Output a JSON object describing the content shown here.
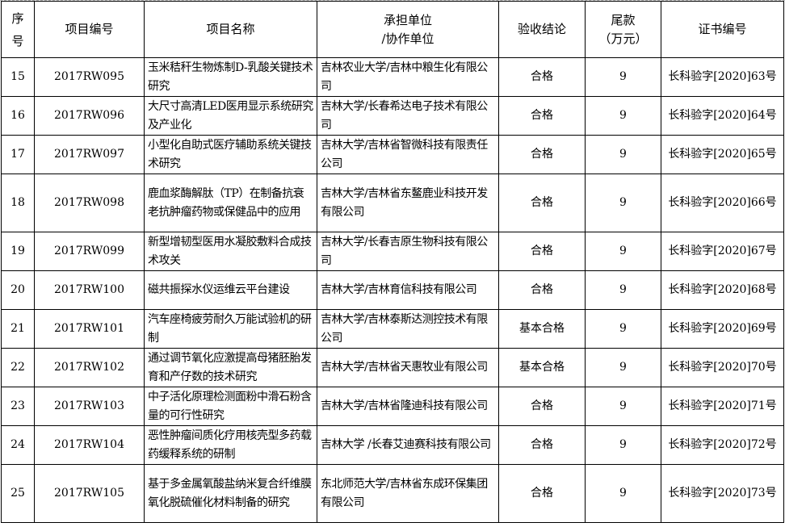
{
  "table": {
    "headers": [
      "序号",
      "项目编号",
      "项目名称",
      "承担单位\n/协作单位",
      "验收结论",
      "尾款\n（万元）",
      "证书编号"
    ],
    "rows": [
      {
        "no": "15",
        "code": "2017RW095",
        "name": "玉米秸秆生物炼制D-乳酸关键技术研究",
        "unit": "吉林农业大学/吉林中粮生化有限公司",
        "result": "合格",
        "amount": "9",
        "cert": "长科验字[2020]63号"
      },
      {
        "no": "16",
        "code": "2017RW096",
        "name": "大尺寸高清LED医用显示系统研究及产业化",
        "unit": "吉林大学/长春希达电子技术有限公司",
        "result": "合格",
        "amount": "9",
        "cert": "长科验字[2020]64号"
      },
      {
        "no": "17",
        "code": "2017RW097",
        "name": "小型化自助式医疗辅助系统关键技术研究",
        "unit": "吉林大学/吉林省智微科技有限责任公司",
        "result": "合格",
        "amount": "9",
        "cert": "长科验字[2020]65号"
      },
      {
        "no": "18",
        "code": "2017RW098",
        "name": "鹿血浆酶解肽（TP）在制备抗衰老抗肿瘤药物或保健品中的应用",
        "unit": "吉林大学/吉林省东鳌鹿业科技开发有限公司",
        "result": "合格",
        "amount": "9",
        "cert": "长科验字[2020]66号"
      },
      {
        "no": "19",
        "code": "2017RW099",
        "name": "新型增韧型医用水凝胶敷料合成技术攻关",
        "unit": "吉林大学/长春吉原生物科技有限公司",
        "result": "合格",
        "amount": "9",
        "cert": "长科验字[2020]67号"
      },
      {
        "no": "20",
        "code": "2017RW100",
        "name": "磁共振探水仪运维云平台建设",
        "unit": "吉林大学/吉林育信科技有限公司",
        "result": "合格",
        "amount": "9",
        "cert": "长科验字[2020]68号"
      },
      {
        "no": "21",
        "code": "2017RW101",
        "name": "汽车座椅疲劳耐久万能试验机的研制",
        "unit": "吉林大学/吉林泰斯达测控技术有限公司",
        "result": "基本合格",
        "amount": "9",
        "cert": "长科验字[2020]69号"
      },
      {
        "no": "22",
        "code": "2017RW102",
        "name": "通过调节氧化应激提高母猪胚胎发育和产仔数的技术研究",
        "unit": "吉林大学/吉林省天惠牧业有限公司",
        "result": "基本合格",
        "amount": "9",
        "cert": "长科验字[2020]70号"
      },
      {
        "no": "23",
        "code": "2017RW103",
        "name": "中子活化原理检测面粉中滑石粉含量的可行性研究",
        "unit": "吉林大学/吉林省隆迪科技有限公司",
        "result": "合格",
        "amount": "9",
        "cert": "长科验字[2020]71号"
      },
      {
        "no": "24",
        "code": "2017RW104",
        "name": "恶性肿瘤间质化疗用核壳型多药载药缓释系统的研制",
        "unit": "吉林大学 /长春艾迪赛科技有限公司",
        "result": "合格",
        "amount": "9",
        "cert": "长科验字[2020]72号"
      },
      {
        "no": "25",
        "code": "2017RW105",
        "name": "基于多金属氧酸盐纳米复合纤维膜氧化脱硫催化材料制备的研究",
        "unit": "东北师范大学/吉林省东成环保集团有限公司",
        "result": "合格",
        "amount": "9",
        "cert": "长科验字[2020]73号"
      }
    ]
  }
}
